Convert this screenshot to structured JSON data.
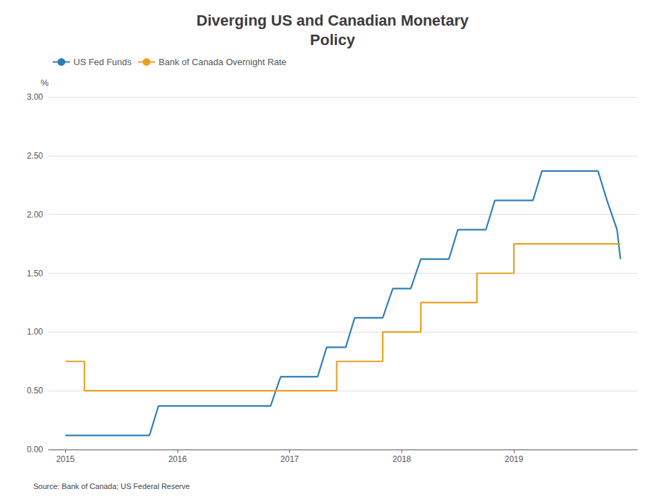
{
  "chart_data": {
    "type": "line",
    "title": "Diverging US and Canadian Monetary\nPolicy",
    "ylabel": "%",
    "annotation": "Source: Bank of Canada; US Federal Reserve",
    "xlim": [
      2014.85,
      2020.1
    ],
    "xticks": [
      2015,
      2016,
      2017,
      2018,
      2019
    ],
    "ylim": [
      0.0,
      3.0
    ],
    "yticks": [
      {
        "value": 0.0,
        "label": "0.00"
      },
      {
        "value": 0.5,
        "label": "0.50"
      },
      {
        "value": 1.0,
        "label": "1.00"
      },
      {
        "value": 1.5,
        "label": "1.50"
      },
      {
        "value": 2.0,
        "label": "2.00"
      },
      {
        "value": 2.5,
        "label": "2.50"
      },
      {
        "value": 3.0,
        "label": "3.00"
      }
    ],
    "grid": true,
    "legend": "upper left",
    "series": [
      {
        "name": "US Fed Funds",
        "color": "#2d7eb5",
        "x": [
          2015.0,
          2015.08,
          2015.08,
          2015.17,
          2015.25,
          2015.33,
          2015.42,
          2015.5,
          2015.58,
          2015.67,
          2015.75,
          2015.83,
          2015.92,
          2016.0,
          2016.08,
          2016.17,
          2016.25,
          2016.33,
          2016.42,
          2016.5,
          2016.58,
          2016.67,
          2016.75,
          2016.83,
          2016.92,
          2017.0,
          2017.08,
          2017.17,
          2017.25,
          2017.33,
          2017.42,
          2017.5,
          2017.58,
          2017.67,
          2017.75,
          2017.83,
          2017.92,
          2018.0,
          2018.08,
          2018.17,
          2018.25,
          2018.33,
          2018.42,
          2018.5,
          2018.58,
          2018.67,
          2018.75,
          2018.83,
          2018.92,
          2019.0,
          2019.08,
          2019.17,
          2019.25,
          2019.33,
          2019.42,
          2019.5,
          2019.58,
          2019.67,
          2019.75,
          2019.83,
          2019.92,
          2019.95
        ],
        "values": [
          0.12,
          0.12,
          0.12,
          0.12,
          0.12,
          0.12,
          0.12,
          0.12,
          0.12,
          0.12,
          0.12,
          0.37,
          0.37,
          0.37,
          0.37,
          0.37,
          0.37,
          0.37,
          0.37,
          0.37,
          0.37,
          0.37,
          0.37,
          0.37,
          0.62,
          0.62,
          0.62,
          0.62,
          0.62,
          0.87,
          0.87,
          0.87,
          1.12,
          1.12,
          1.12,
          1.12,
          1.37,
          1.37,
          1.37,
          1.62,
          1.62,
          1.62,
          1.62,
          1.87,
          1.87,
          1.87,
          1.87,
          2.12,
          2.12,
          2.12,
          2.12,
          2.12,
          2.37,
          2.37,
          2.37,
          2.37,
          2.37,
          2.37,
          2.37,
          2.12,
          1.87,
          1.62
        ]
      },
      {
        "name": "Bank of Canada Overnight Rate",
        "color": "#e8a020",
        "x": [
          2015.0,
          2015.17,
          2015.17,
          2015.5,
          2015.5,
          2015.75,
          2015.75,
          2016.5,
          2016.5,
          2017.0,
          2017.0,
          2017.42,
          2017.42,
          2017.58,
          2017.58,
          2017.83,
          2017.83,
          2018.0,
          2018.0,
          2018.17,
          2018.17,
          2018.42,
          2018.42,
          2018.67,
          2018.67,
          2018.83,
          2018.83,
          2019.0,
          2019.0,
          2019.5,
          2019.5,
          2019.6,
          2019.95
        ],
        "values": [
          0.75,
          0.75,
          0.5,
          0.5,
          0.5,
          0.5,
          0.5,
          0.5,
          0.5,
          0.5,
          0.5,
          0.5,
          0.75,
          0.75,
          0.75,
          0.75,
          1.0,
          1.0,
          1.0,
          1.0,
          1.25,
          1.25,
          1.25,
          1.25,
          1.5,
          1.5,
          1.5,
          1.5,
          1.75,
          1.75,
          1.75,
          1.75,
          1.75
        ]
      }
    ]
  }
}
